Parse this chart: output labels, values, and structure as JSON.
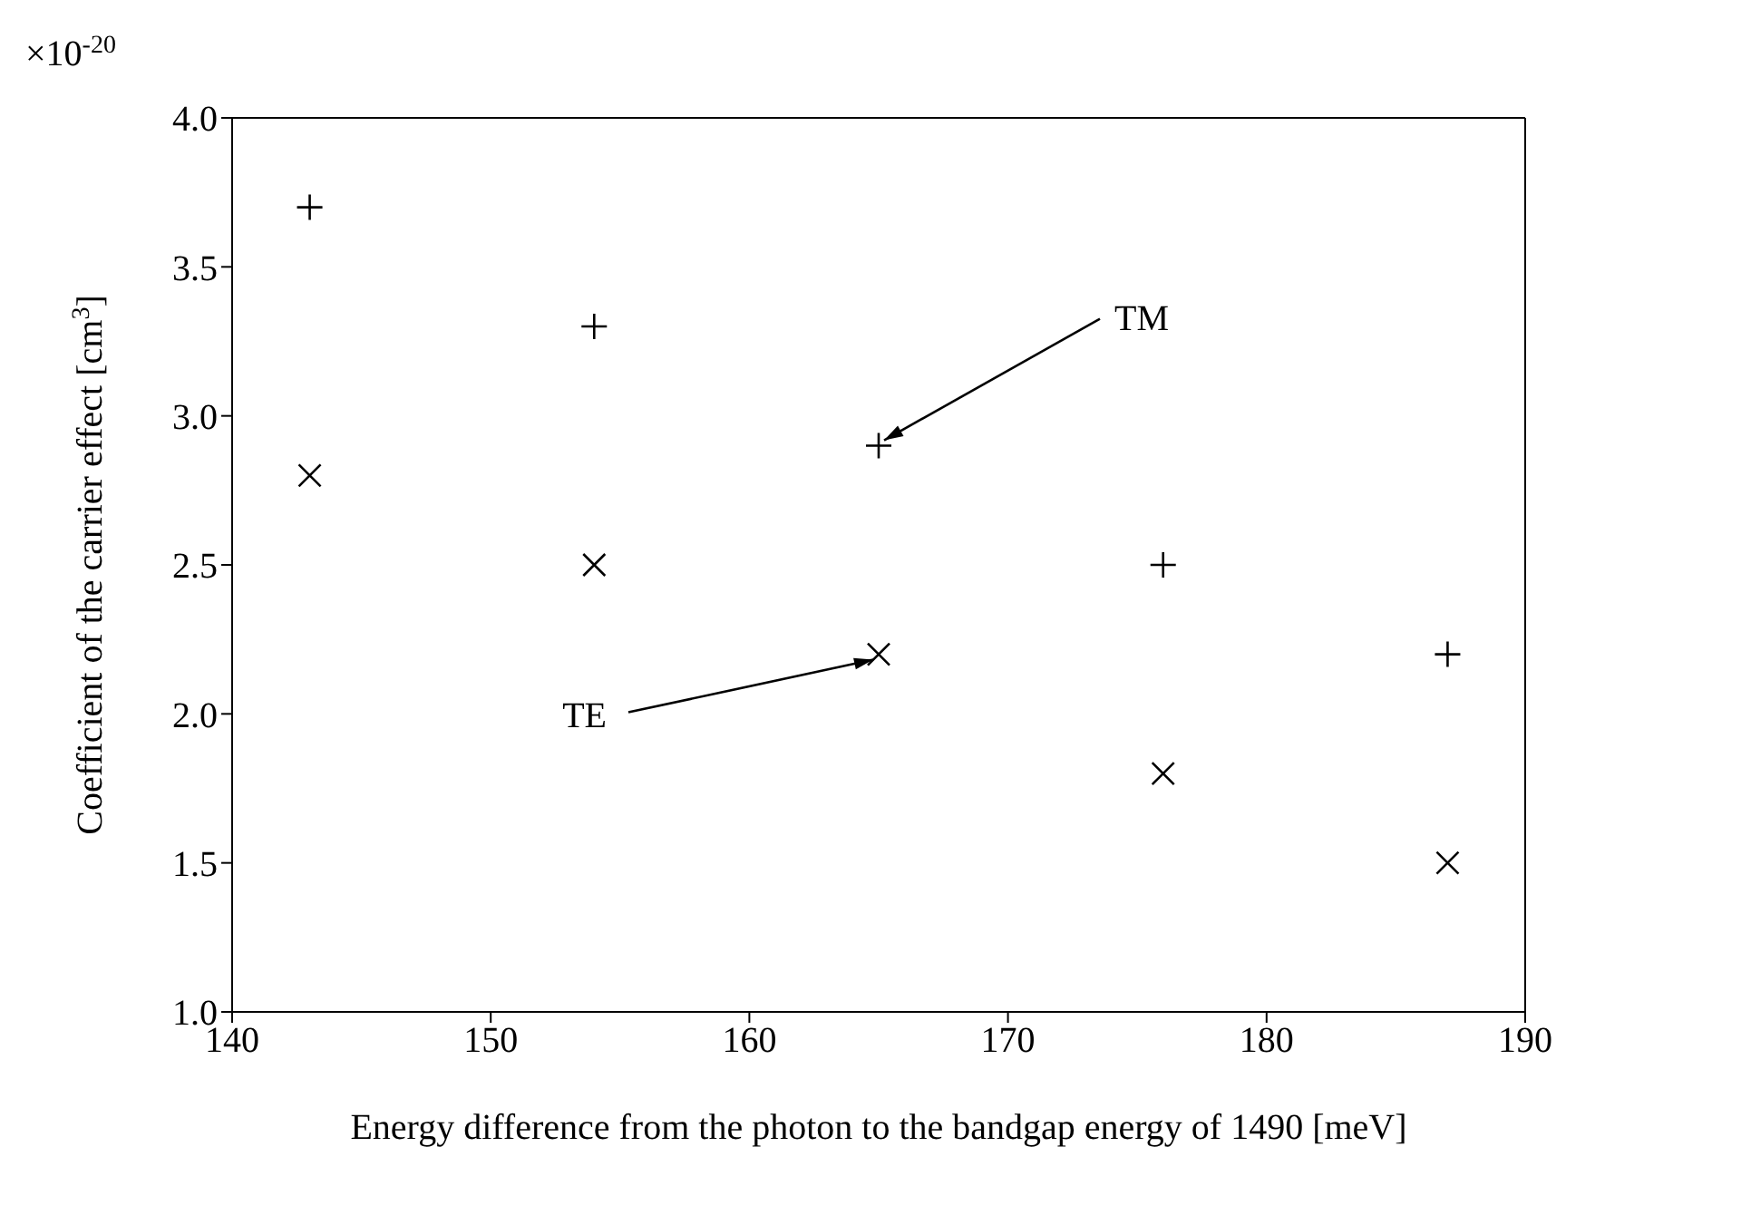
{
  "chart_data": {
    "type": "scatter",
    "xlabel": "Energy difference from the photon to the bandgap energy of 1490 [meV]",
    "ylabel": "Coefficient of the carrier effect [cm$^{3}$]",
    "x": [
      143,
      154,
      165,
      176,
      187
    ],
    "series": [
      {
        "color": "#000000",
        "marker": "plus",
        "values": [
          3.7,
          3.3,
          2.9,
          2.5,
          2.2
        ]
      },
      {
        "color": "#000000",
        "marker": "cross",
        "values": [
          2.8,
          2.5,
          2.2,
          1.8,
          1.5
        ]
      }
    ],
    "xlim": [
      140,
      190
    ],
    "xticks": [
      140,
      150,
      160,
      170,
      180,
      190
    ],
    "ylim": [
      1.0,
      4.0
    ],
    "yticks": [
      {
        "value": 1,
        "label": "1.0"
      },
      {
        "value": 1.5,
        "label": "1.5"
      },
      {
        "value": 2,
        "label": "2.0"
      },
      {
        "value": 2.5,
        "label": "2.5"
      },
      {
        "value": 3,
        "label": "3.0"
      },
      {
        "value": 3.5,
        "label": "3.5"
      },
      {
        "value": 4,
        "label": "4.0"
      }
    ],
    "grid": false,
    "annotations": [
      "×10$^{-20}$",
      {
        "text": "TM",
        "x": 165,
        "y": 2.9
      },
      {
        "text": "TE",
        "x": 165,
        "y": 2.2
      }
    ]
  }
}
